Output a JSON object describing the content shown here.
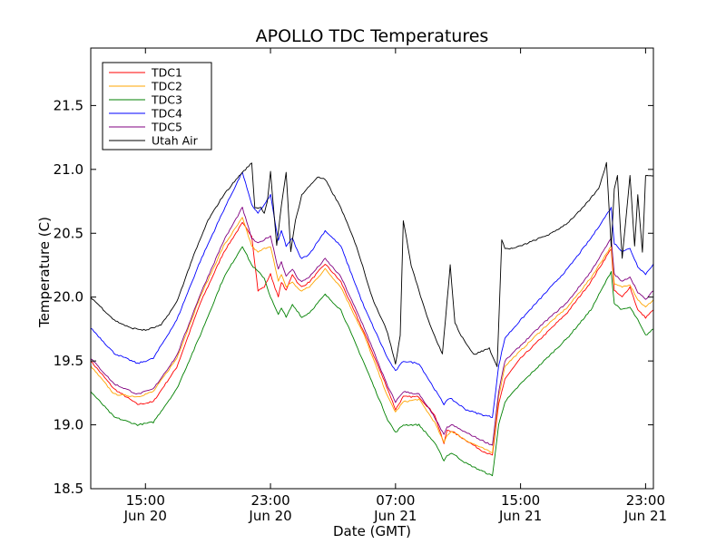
{
  "chart_data": {
    "type": "line",
    "title": "APOLLO TDC Temperatures",
    "xlabel": "Date (GMT)",
    "ylabel": "Temperature (C)",
    "xlim": [
      11.5,
      47.5
    ],
    "ylim": [
      18.5,
      21.95
    ],
    "x_unit": "hours since Jun 20 00:00 GMT",
    "x_ticks": [
      {
        "value": 15,
        "time": "15:00",
        "date": "Jun 20"
      },
      {
        "value": 23,
        "time": "23:00",
        "date": "Jun 20"
      },
      {
        "value": 31,
        "time": "07:00",
        "date": "Jun 21"
      },
      {
        "value": 39,
        "time": "15:00",
        "date": "Jun 21"
      },
      {
        "value": 47,
        "time": "23:00",
        "date": "Jun 21"
      }
    ],
    "y_ticks": [
      "18.5",
      "19.0",
      "19.5",
      "20.0",
      "20.5",
      "21.0",
      "21.5"
    ],
    "series": [
      {
        "name": "TDC1",
        "color": "#ff0000",
        "x": [
          11.5,
          13,
          14.5,
          15.5,
          17,
          18.5,
          20,
          21.2,
          21.8,
          22.2,
          22.6,
          23,
          23.5,
          23.7,
          24,
          24.4,
          24.8,
          25,
          25.5,
          26.5,
          27.5,
          29,
          30.5,
          31,
          31.5,
          32.5,
          33.5,
          34.1,
          34.3,
          34.6,
          35.5,
          36.5,
          37.2,
          37.6,
          38,
          39,
          40.5,
          42,
          43.5,
          44.8,
          45,
          45.5,
          46,
          46.5,
          47,
          47.5
        ],
        "y": [
          19.5,
          19.28,
          19.16,
          19.18,
          19.45,
          19.95,
          20.35,
          20.58,
          20.48,
          20.05,
          20.08,
          20.18,
          20.0,
          20.12,
          20.05,
          20.18,
          20.1,
          20.08,
          20.12,
          20.26,
          20.12,
          19.72,
          19.28,
          19.12,
          19.22,
          19.22,
          19.08,
          18.85,
          18.96,
          18.95,
          18.88,
          18.8,
          18.76,
          19.16,
          19.36,
          19.52,
          19.7,
          19.88,
          20.12,
          20.38,
          20.05,
          20.0,
          20.08,
          19.9,
          19.84,
          19.9
        ]
      },
      {
        "name": "TDC2",
        "color": "#ffa500",
        "x": [
          11.5,
          13,
          14.5,
          15.5,
          17,
          18.5,
          20,
          21.2,
          21.8,
          22.2,
          22.6,
          23,
          23.5,
          23.7,
          24,
          24.4,
          24.8,
          25,
          25.5,
          26.5,
          27.5,
          29,
          30.5,
          31,
          31.5,
          32.5,
          33.5,
          34.1,
          34.3,
          34.6,
          35.5,
          36.5,
          37.2,
          37.6,
          38,
          39,
          40.5,
          42,
          43.5,
          44.8,
          45,
          45.5,
          46,
          46.5,
          47,
          47.5
        ],
        "y": [
          19.46,
          19.24,
          19.22,
          19.26,
          19.52,
          20.0,
          20.4,
          20.62,
          20.4,
          20.35,
          20.38,
          20.4,
          20.12,
          20.18,
          20.08,
          20.12,
          20.06,
          20.05,
          20.08,
          20.22,
          20.08,
          19.7,
          19.22,
          19.1,
          19.18,
          19.2,
          19.02,
          18.86,
          18.92,
          18.95,
          18.88,
          18.82,
          18.78,
          19.22,
          19.46,
          19.58,
          19.76,
          19.92,
          20.15,
          20.4,
          20.1,
          20.08,
          20.1,
          19.98,
          19.92,
          19.98
        ]
      },
      {
        "name": "TDC3",
        "color": "#008000",
        "x": [
          11.5,
          13,
          14.5,
          15.5,
          17,
          18.5,
          20,
          21.2,
          21.8,
          22.2,
          22.6,
          23,
          23.5,
          23.7,
          24,
          24.4,
          24.8,
          25,
          25.5,
          26.5,
          27.5,
          29,
          30.5,
          31,
          31.5,
          32.5,
          33.5,
          34.1,
          34.3,
          34.6,
          35.5,
          36.5,
          37.2,
          37.6,
          38,
          39,
          40.5,
          42,
          43.5,
          44.8,
          45,
          45.5,
          46,
          46.5,
          47,
          47.5
        ],
        "y": [
          19.26,
          19.06,
          19.0,
          19.02,
          19.28,
          19.7,
          20.15,
          20.4,
          20.25,
          20.2,
          20.15,
          20.0,
          19.86,
          19.92,
          19.84,
          19.94,
          19.88,
          19.84,
          19.88,
          20.02,
          19.9,
          19.48,
          19.04,
          18.94,
          19.0,
          19.0,
          18.86,
          18.72,
          18.76,
          18.78,
          18.7,
          18.64,
          18.6,
          19.0,
          19.18,
          19.32,
          19.5,
          19.68,
          19.9,
          20.2,
          19.95,
          19.9,
          19.92,
          19.82,
          19.7,
          19.75
        ]
      },
      {
        "name": "TDC4",
        "color": "#0000ff",
        "x": [
          11.5,
          13,
          14.5,
          15.5,
          17,
          18.5,
          20,
          21.2,
          21.8,
          22.2,
          22.6,
          23,
          23.5,
          23.7,
          24,
          24.4,
          24.8,
          25,
          25.5,
          26.5,
          27.5,
          29,
          30.5,
          31,
          31.5,
          32.5,
          33.5,
          34.1,
          34.3,
          34.6,
          35.5,
          36.5,
          37.2,
          37.6,
          38,
          39,
          40.5,
          42,
          43.5,
          44.8,
          45,
          45.5,
          46,
          46.5,
          47,
          47.5
        ],
        "y": [
          19.76,
          19.56,
          19.48,
          19.52,
          19.82,
          20.28,
          20.68,
          20.98,
          20.72,
          20.66,
          20.72,
          20.8,
          20.44,
          20.52,
          20.4,
          20.46,
          20.34,
          20.3,
          20.34,
          20.52,
          20.4,
          19.92,
          19.52,
          19.42,
          19.5,
          19.48,
          19.28,
          19.16,
          19.2,
          19.2,
          19.12,
          19.08,
          19.06,
          19.46,
          19.68,
          19.82,
          20.02,
          20.22,
          20.46,
          20.7,
          20.42,
          20.36,
          20.38,
          20.24,
          20.18,
          20.26
        ]
      },
      {
        "name": "TDC5",
        "color": "#800080",
        "x": [
          11.5,
          13,
          14.5,
          15.5,
          17,
          18.5,
          20,
          21.2,
          21.8,
          22.2,
          22.6,
          23,
          23.5,
          23.7,
          24,
          24.4,
          24.8,
          25,
          25.5,
          26.5,
          27.5,
          29,
          30.5,
          31,
          31.5,
          32.5,
          33.5,
          34.1,
          34.3,
          34.6,
          35.5,
          36.5,
          37.2,
          37.6,
          38,
          39,
          40.5,
          42,
          43.5,
          44.8,
          45,
          45.5,
          46,
          46.5,
          47,
          47.5
        ],
        "y": [
          19.52,
          19.32,
          19.24,
          19.28,
          19.54,
          20.02,
          20.44,
          20.7,
          20.46,
          20.42,
          20.45,
          20.48,
          20.22,
          20.28,
          20.16,
          20.22,
          20.14,
          20.12,
          20.16,
          20.3,
          20.16,
          19.76,
          19.3,
          19.18,
          19.26,
          19.24,
          19.06,
          18.92,
          18.98,
          19.0,
          18.94,
          18.88,
          18.84,
          19.26,
          19.5,
          19.62,
          19.8,
          19.96,
          20.2,
          20.46,
          20.18,
          20.12,
          20.16,
          20.04,
          19.98,
          20.05
        ]
      },
      {
        "name": "Utah Air",
        "color": "#000000",
        "x": [
          11.5,
          13,
          14,
          15,
          16,
          17,
          18,
          19,
          20,
          21,
          21.8,
          22,
          22.4,
          22.6,
          22.8,
          23,
          23.4,
          23.7,
          24,
          24.3,
          24.6,
          25,
          26,
          26.5,
          27.5,
          28.5,
          29.5,
          30.5,
          31,
          31.3,
          31.5,
          32,
          33,
          34,
          34.5,
          34.8,
          35.2,
          36,
          37,
          37.5,
          37.8,
          38,
          38.5,
          39,
          40,
          41,
          42,
          43,
          44,
          44.5,
          44.8,
          45,
          45.2,
          45.5,
          46,
          46.3,
          46.5,
          46.8,
          47,
          47.5
        ],
        "y": [
          20.0,
          19.82,
          19.76,
          19.74,
          19.78,
          19.96,
          20.3,
          20.6,
          20.8,
          20.95,
          21.05,
          20.7,
          20.7,
          20.66,
          20.75,
          20.98,
          20.4,
          20.72,
          20.98,
          20.36,
          20.6,
          20.8,
          20.94,
          20.92,
          20.7,
          20.4,
          20.0,
          19.72,
          19.48,
          19.7,
          20.6,
          20.25,
          19.85,
          19.55,
          20.25,
          19.8,
          19.7,
          19.55,
          19.6,
          19.45,
          20.45,
          20.38,
          20.38,
          20.4,
          20.45,
          20.5,
          20.58,
          20.7,
          20.85,
          21.05,
          20.4,
          20.85,
          20.95,
          20.3,
          20.95,
          20.4,
          20.8,
          20.35,
          20.95,
          20.95
        ]
      }
    ]
  }
}
